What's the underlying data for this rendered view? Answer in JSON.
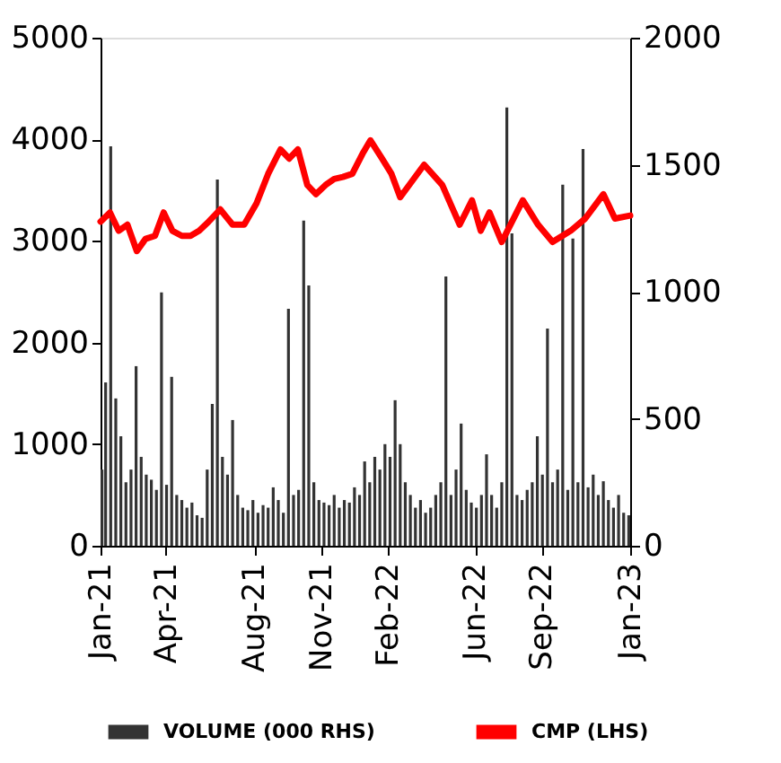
{
  "chart_data": {
    "type": "line",
    "xlim": [
      "2021-01-01",
      "2023-01-01"
    ],
    "xticks": [
      {
        "value": "2021-01-01",
        "label": "Jan-21"
      },
      {
        "value": "2021-04-01",
        "label": "Apr-21"
      },
      {
        "value": "2021-08-01",
        "label": "Aug-21"
      },
      {
        "value": "2021-11-01",
        "label": "Nov-21"
      },
      {
        "value": "2022-02-01",
        "label": "Feb-22"
      },
      {
        "value": "2022-06-01",
        "label": "Jun-22"
      },
      {
        "value": "2022-09-01",
        "label": "Sep-22"
      },
      {
        "value": "2023-01-01",
        "label": "Jan-23"
      }
    ],
    "ylim": [
      0,
      5000
    ],
    "yticks": [
      0,
      1000,
      2000,
      3000,
      4000,
      5000
    ],
    "y2lim": [
      0,
      2000
    ],
    "y2ticks": [
      0,
      500,
      1000,
      1500,
      2000
    ],
    "legend": "bottom",
    "series": [
      {
        "name": "VOLUME (000 RHS)",
        "type": "bar",
        "axis": "y2",
        "color": "#333333",
        "x": [
          "2021-01-03",
          "2021-01-08",
          "2021-01-15",
          "2021-01-22",
          "2021-01-29",
          "2021-02-05",
          "2021-02-12",
          "2021-02-19",
          "2021-02-26",
          "2021-03-05",
          "2021-03-12",
          "2021-03-19",
          "2021-03-26",
          "2021-04-02",
          "2021-04-09",
          "2021-04-16",
          "2021-04-23",
          "2021-04-30",
          "2021-05-07",
          "2021-05-14",
          "2021-05-21",
          "2021-05-28",
          "2021-06-04",
          "2021-06-11",
          "2021-06-18",
          "2021-06-25",
          "2021-07-02",
          "2021-07-09",
          "2021-07-16",
          "2021-07-23",
          "2021-07-30",
          "2021-08-06",
          "2021-08-13",
          "2021-08-20",
          "2021-08-27",
          "2021-09-03",
          "2021-09-10",
          "2021-09-17",
          "2021-09-24",
          "2021-10-01",
          "2021-10-08",
          "2021-10-15",
          "2021-10-22",
          "2021-10-29",
          "2021-11-05",
          "2021-11-12",
          "2021-11-19",
          "2021-11-26",
          "2021-12-03",
          "2021-12-10",
          "2021-12-17",
          "2021-12-24",
          "2021-12-31",
          "2022-01-07",
          "2022-01-14",
          "2022-01-21",
          "2022-01-28",
          "2022-02-04",
          "2022-02-11",
          "2022-02-18",
          "2022-02-25",
          "2022-03-04",
          "2022-03-11",
          "2022-03-18",
          "2022-03-25",
          "2022-04-01",
          "2022-04-08",
          "2022-04-15",
          "2022-04-22",
          "2022-04-29",
          "2022-05-06",
          "2022-05-13",
          "2022-05-20",
          "2022-05-27",
          "2022-06-03",
          "2022-06-10",
          "2022-06-17",
          "2022-06-24",
          "2022-07-01",
          "2022-07-08",
          "2022-07-15",
          "2022-07-22",
          "2022-07-29",
          "2022-08-05",
          "2022-08-12",
          "2022-08-19",
          "2022-08-26",
          "2022-09-02",
          "2022-09-09",
          "2022-09-16",
          "2022-09-23",
          "2022-09-30",
          "2022-10-07",
          "2022-10-14",
          "2022-10-21",
          "2022-10-28",
          "2022-11-04",
          "2022-11-11",
          "2022-11-18",
          "2022-11-25",
          "2022-12-02",
          "2022-12-09",
          "2022-12-16",
          "2022-12-23",
          "2022-12-30"
        ],
        "values": [
          300,
          643,
          1572,
          580,
          431,
          250,
          300,
          707,
          350,
          280,
          260,
          220,
          997,
          240,
          665,
          200,
          180,
          150,
          170,
          120,
          110,
          300,
          558,
          1442,
          350,
          280,
          495,
          200,
          150,
          140,
          180,
          130,
          160,
          150,
          230,
          180,
          130,
          933,
          200,
          220,
          1280,
          1025,
          250,
          180,
          170,
          160,
          200,
          150,
          180,
          170,
          230,
          200,
          332,
          250,
          350,
          300,
          400,
          350,
          573,
          400,
          250,
          200,
          150,
          180,
          130,
          150,
          200,
          250,
          1060,
          200,
          300,
          481,
          220,
          170,
          150,
          200,
          360,
          200,
          150,
          250,
          1725,
          1230,
          200,
          180,
          220,
          250,
          431,
          280,
          855,
          250,
          300,
          1421,
          220,
          1209,
          250,
          1562,
          230,
          280,
          200,
          254,
          180,
          150,
          200,
          130,
          120
        ]
      },
      {
        "name": "CMP (LHS)",
        "color": "#ff0000",
        "x": [
          "2021-01-01",
          "2021-01-14",
          "2021-01-26",
          "2021-02-07",
          "2021-02-20",
          "2021-03-04",
          "2021-03-17",
          "2021-03-29",
          "2021-04-10",
          "2021-04-23",
          "2021-05-05",
          "2021-05-17",
          "2021-05-30",
          "2021-06-15",
          "2021-07-02",
          "2021-07-18",
          "2021-08-04",
          "2021-08-20",
          "2021-09-06",
          "2021-09-18",
          "2021-09-30",
          "2021-10-13",
          "2021-10-25",
          "2021-11-07",
          "2021-11-19",
          "2021-12-01",
          "2021-12-14",
          "2021-12-29",
          "2022-01-08",
          "2022-01-24",
          "2022-02-06",
          "2022-02-18",
          "2022-03-23",
          "2022-04-17",
          "2022-05-11",
          "2022-05-28",
          "2022-06-09",
          "2022-06-21",
          "2022-07-08",
          "2022-08-06",
          "2022-08-27",
          "2022-09-16",
          "2022-10-11",
          "2022-10-31",
          "2022-11-25",
          "2022-12-11",
          "2023-01-01"
        ],
        "values": [
          3190,
          3280,
          3100,
          3160,
          2900,
          3020,
          3050,
          3280,
          3100,
          3050,
          3050,
          3100,
          3190,
          3310,
          3160,
          3160,
          3370,
          3660,
          3900,
          3810,
          3900,
          3550,
          3460,
          3550,
          3610,
          3630,
          3660,
          3870,
          3990,
          3810,
          3660,
          3430,
          3750,
          3550,
          3160,
          3400,
          3100,
          3280,
          2990,
          3400,
          3160,
          2990,
          3100,
          3220,
          3460,
          3220,
          3250
        ]
      }
    ]
  }
}
